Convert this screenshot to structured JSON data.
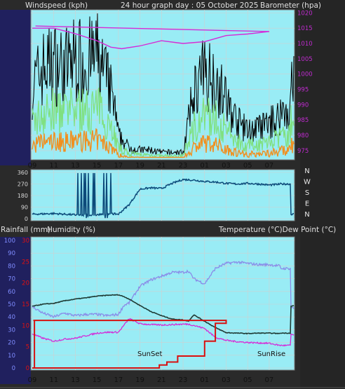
{
  "header": {
    "windspeed_label": "Windspeed (kph)",
    "graph_title": "24 hour graph day : 05 October 2025",
    "barometer_label": "Barometer (hpa)"
  },
  "labels_row2": {
    "rain_label": "Rainfall (mm)",
    "humidity_label": "Humidity (%)",
    "temp_dew_label": "Temperature (°C)Dew Point (°C)"
  },
  "directions": [
    "N",
    "W",
    "S",
    "E",
    "N"
  ],
  "annotations": {
    "sunset": "SunSet",
    "sunrise": "SunRise"
  },
  "colors": {
    "plot_bg": "#99ecf5",
    "grid": "#d0d0d0",
    "barometer": "#d42bd8",
    "wind_gust": "#000000",
    "wind_speed": "#7fe07f",
    "wind_avg": "#f09020",
    "wind_dir": "#0c4a7a",
    "temperature": "#1f3b35",
    "humidity": "#8a8ce8",
    "dewpoint": "#d42bd8",
    "rainfall": "#d81010"
  },
  "chart_data": [
    {
      "type": "line",
      "title": "24 hour graph day : 05 October 2025",
      "xlabel": "",
      "x_ticks": [
        "11",
        "13",
        "15",
        "17",
        "19",
        "21",
        "23",
        "01",
        "03",
        "05",
        "07",
        "09"
      ],
      "y_right_label": "Barometer (hpa)",
      "y_right_ticks": [
        975,
        980,
        985,
        990,
        995,
        1000,
        1005,
        1010,
        1015,
        1020
      ],
      "ylim_right": [
        972,
        1021
      ],
      "wind_ylim": [
        0,
        62
      ],
      "series": [
        {
          "name": "Barometer (hpa)",
          "x": [
            9,
            11,
            13,
            15,
            16.3,
            17.3,
            19,
            21,
            23,
            1,
            3,
            5,
            7,
            9.3
          ],
          "values": [
            1015.0,
            1015.0,
            1013.2,
            1010.9,
            1008.8,
            1008.3,
            1009.2,
            1010.9,
            1010.0,
            1010.6,
            1012.6,
            1013.1,
            1013.9,
            1015.7
          ]
        },
        {
          "name": "Windspeed (kph)",
          "x": [
            9,
            10,
            11,
            12,
            13,
            14,
            15,
            16,
            16.5,
            17,
            18,
            19,
            20,
            21,
            22,
            23,
            0,
            1,
            2,
            3,
            4,
            5,
            6,
            7,
            8,
            9.3
          ],
          "values": [
            30,
            38,
            40,
            38,
            42,
            40,
            43,
            32,
            25,
            10,
            5,
            4,
            4,
            3,
            3,
            3,
            28,
            36,
            34,
            24,
            16,
            12,
            13,
            15,
            18,
            20
          ]
        },
        {
          "name": "Wind direction",
          "x": [
            9,
            11,
            13,
            14,
            15,
            16,
            17,
            18,
            19,
            20,
            21,
            22,
            23,
            0,
            1,
            2,
            3,
            4,
            5,
            6,
            7,
            8,
            9.3
          ],
          "values": [
            35,
            40,
            30,
            25,
            30,
            40,
            35,
            110,
            230,
            240,
            235,
            275,
            305,
            300,
            290,
            285,
            275,
            270,
            275,
            270,
            262,
            268,
            270
          ]
        }
      ]
    },
    {
      "type": "line",
      "x_ticks": [
        "11",
        "13",
        "15",
        "17",
        "19",
        "21",
        "23",
        "01",
        "03",
        "05",
        "07",
        "09"
      ],
      "y_left_ticks_rain": [
        0,
        5,
        10,
        15,
        20,
        25,
        30
      ],
      "y_left_ticks_humidity": [
        0,
        10,
        20,
        30,
        40,
        50,
        60,
        70,
        80,
        90,
        100
      ],
      "ylim_humidity": [
        0,
        100
      ],
      "series": [
        {
          "name": "Temperature (°C)",
          "x": [
            9,
            10,
            11,
            12,
            13,
            14,
            15,
            16,
            17,
            17.5,
            18,
            19,
            20,
            21,
            22,
            23,
            23.5,
            0,
            1,
            2,
            3,
            4,
            5,
            6,
            7,
            8,
            9.3
          ],
          "values": [
            14.5,
            15.0,
            15.2,
            15.8,
            16.2,
            16.5,
            16.9,
            17.1,
            17.2,
            16.8,
            16.2,
            14.7,
            13.3,
            12.3,
            11.5,
            11.3,
            11.0,
            12.5,
            11.0,
            9.5,
            8.3,
            8.2,
            8.1,
            8.2,
            8.2,
            8.1,
            8.2
          ]
        },
        {
          "name": "Humidity (%)",
          "x": [
            9,
            10,
            11,
            12,
            13,
            14,
            15,
            16,
            17,
            17.5,
            18,
            19,
            20,
            21,
            22,
            23,
            23.5,
            0,
            1,
            2,
            3,
            4,
            5,
            6,
            7,
            8,
            9.3
          ],
          "values": [
            48,
            43,
            40,
            43,
            41,
            42,
            42,
            41,
            42,
            49,
            51,
            64,
            69,
            72,
            75,
            75,
            76,
            70,
            66,
            78,
            82,
            83,
            82,
            81,
            81,
            80,
            78
          ]
        },
        {
          "name": "Dew Point (°C)",
          "x": [
            9,
            10,
            11,
            12,
            13,
            14,
            15,
            16,
            17,
            17.5,
            18,
            19,
            20,
            21,
            22,
            23,
            23.5,
            0,
            1,
            2,
            3,
            4,
            5,
            6,
            7,
            8,
            9.3
          ],
          "values": [
            8.0,
            7.0,
            6.3,
            6.8,
            7.0,
            7.6,
            8.2,
            8.4,
            8.4,
            10.0,
            11.6,
            10.4,
            10.2,
            10.1,
            10.2,
            10.3,
            10.3,
            10.0,
            9.3,
            7.2,
            6.5,
            6.2,
            6.0,
            5.9,
            5.8,
            5.3,
            5.3
          ]
        },
        {
          "name": "Rainfall (mm)",
          "x": [
            9,
            19.8,
            20.8,
            21.5,
            22.5,
            0,
            1,
            1.5,
            2,
            3,
            9.1,
            9.2
          ],
          "values": [
            0,
            0,
            0.2,
            0.4,
            0.8,
            0.8,
            1.8,
            1.8,
            3.0,
            3.2,
            3.2,
            0
          ]
        }
      ]
    }
  ]
}
